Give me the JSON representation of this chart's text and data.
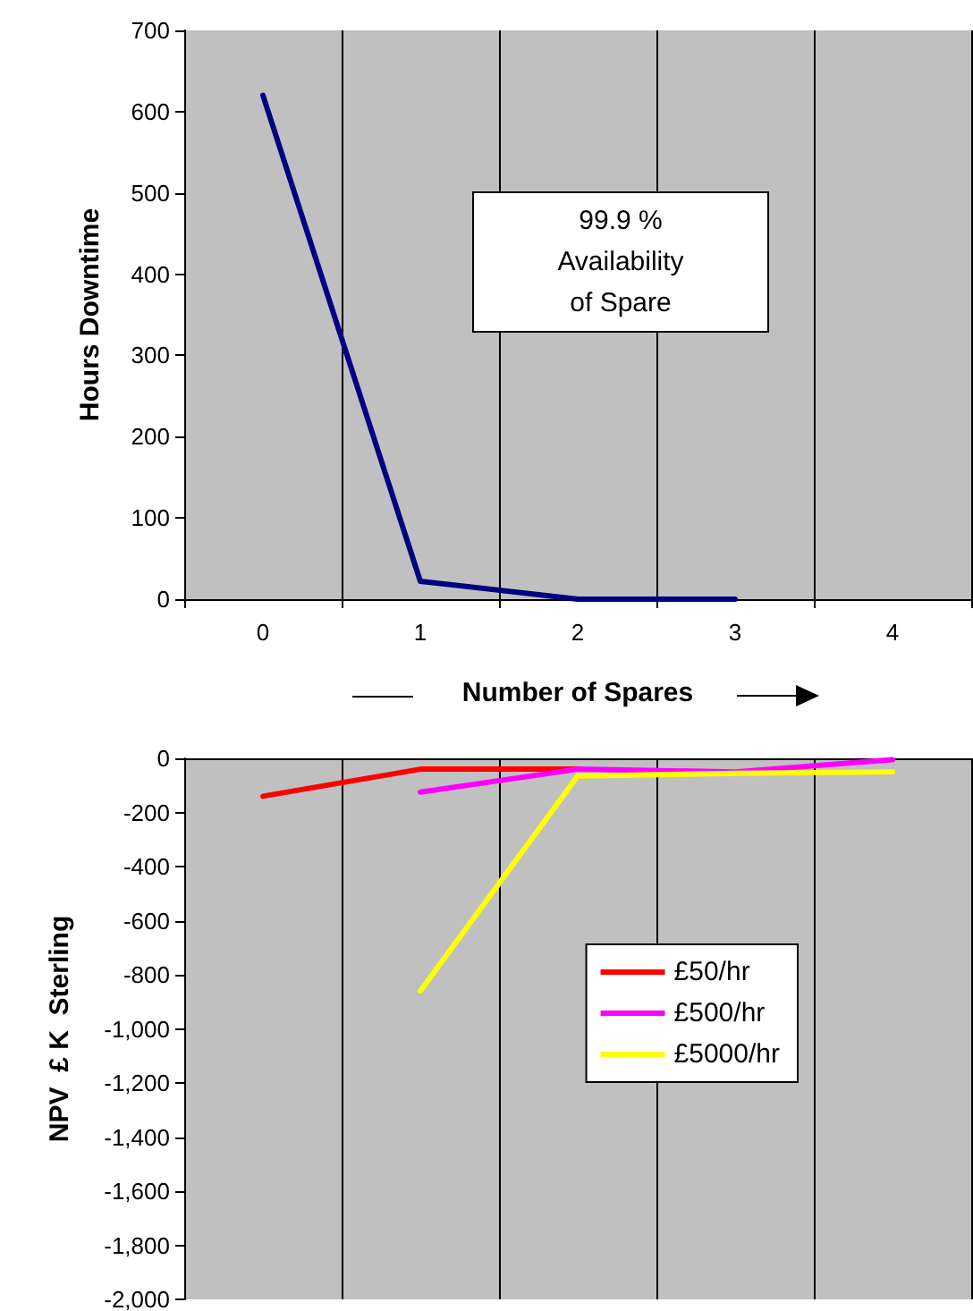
{
  "chart_data": [
    {
      "type": "line",
      "xlabel": "Number of Spares",
      "ylabel": "Hours Downtime",
      "categories": [
        "0",
        "1",
        "2",
        "3",
        "4"
      ],
      "series": [
        {
          "color": "#000080",
          "values": [
            620,
            22,
            0,
            0,
            null
          ]
        }
      ],
      "ylim": [
        0,
        700
      ],
      "yticks": [
        0,
        100,
        200,
        300,
        400,
        500,
        600,
        700
      ],
      "grid": "x",
      "marker": "none",
      "line_style": "solid",
      "legend": false,
      "annotations": [
        "99.9 %\nAvailability\nof Spare"
      ]
    },
    {
      "type": "line",
      "ylabel": "NPV  £ K  Sterling",
      "categories": [
        null,
        null,
        null,
        null,
        null
      ],
      "series": [
        {
          "name": "£50/hr",
          "color": "#ff0000",
          "values": [
            -140,
            -40,
            -40,
            null,
            null
          ]
        },
        {
          "name": "£500/hr",
          "color": "#ff00ff",
          "values": [
            null,
            -125,
            -40,
            -50,
            -5
          ]
        },
        {
          "name": "£5000/hr",
          "color": "#ffff00",
          "values": [
            null,
            -860,
            -65,
            -55,
            -50
          ]
        }
      ],
      "ylim": [
        -2000,
        0
      ],
      "yticks": [
        {
          "value": 0,
          "label": "0"
        },
        {
          "value": -200,
          "label": "-200"
        },
        {
          "value": -400,
          "label": "-400"
        },
        {
          "value": -600,
          "label": "-600"
        },
        {
          "value": -800,
          "label": "-800"
        },
        {
          "value": -1000,
          "label": "-1,000"
        },
        {
          "value": -1200,
          "label": "-1,200"
        },
        {
          "value": -1400,
          "label": "-1,400"
        },
        {
          "value": -1600,
          "label": "-1,600"
        },
        {
          "value": -1800,
          "label": "-1,800"
        },
        {
          "value": -2000,
          "label": "-2,000"
        }
      ],
      "tick_labels": "y",
      "grid": "x",
      "marker": "none",
      "line_style": "solid",
      "legend": "right"
    }
  ]
}
